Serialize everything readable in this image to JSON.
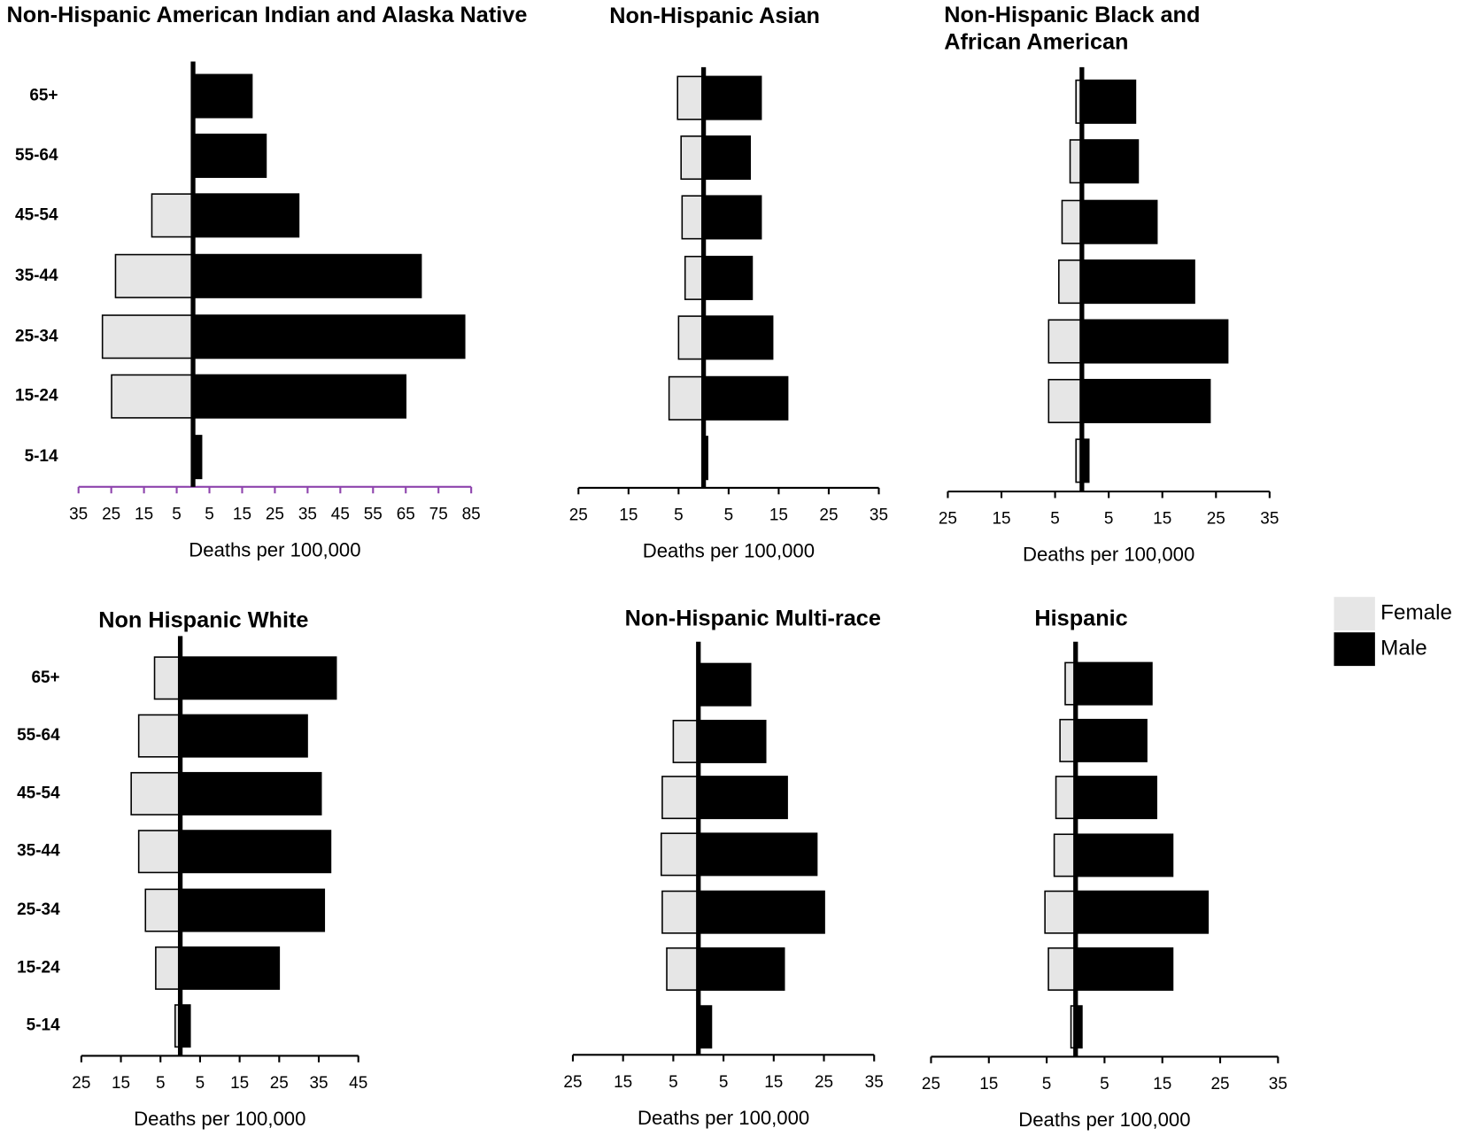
{
  "legend": {
    "series": [
      {
        "name": "Female",
        "color": "#e6e6e6"
      },
      {
        "name": "Male",
        "color": "#000000"
      }
    ]
  },
  "chart_data": [
    {
      "type": "pyramid",
      "title": "Non-Hispanic American Indian and Alaska Native",
      "xlabel": "Deaths per 100,000",
      "axis_color": "#8e44ad",
      "categories": [
        "65+",
        "55-64",
        "45-54",
        "35-44",
        "25-34",
        "15-24",
        "5-14"
      ],
      "series": [
        {
          "values": [
            null,
            null,
            12.6,
            23.7,
            27.7,
            24.9,
            null
          ]
        },
        {
          "values": [
            18,
            22.3,
            32.3,
            69.7,
            83,
            65,
            2.6
          ]
        }
      ],
      "xlim": [
        -35,
        85
      ],
      "xticks": [
        {
          "value": -35,
          "label": "35"
        },
        {
          "value": -25,
          "label": "25"
        },
        {
          "value": -15,
          "label": "15"
        },
        {
          "value": -5,
          "label": "5"
        },
        5,
        15,
        25,
        35,
        45,
        55,
        65,
        75,
        85
      ]
    },
    {
      "type": "pyramid",
      "title": "Non-Hispanic Asian",
      "xlabel": "Deaths per 100,000",
      "axis_color": "#000000",
      "series": [
        {
          "values": [
            5.2,
            4.5,
            4.3,
            3.7,
            5,
            6.9,
            null
          ]
        },
        {
          "values": [
            11.5,
            9.3,
            11.5,
            9.7,
            13.8,
            16.8,
            0.8
          ]
        }
      ],
      "xlim": [
        -25,
        35
      ],
      "xticks": [
        {
          "value": -25,
          "label": "25"
        },
        {
          "value": -15,
          "label": "15"
        },
        {
          "value": -5,
          "label": "5"
        },
        5,
        15,
        25,
        35
      ]
    },
    {
      "type": "pyramid",
      "title": "Non-Hispanic Black and African American",
      "xlabel": "Deaths per 100,000",
      "axis_color": "#000000",
      "series": [
        {
          "values": [
            1.1,
            2.2,
            3.7,
            4.3,
            6.2,
            6.2,
            1.1
          ]
        },
        {
          "values": [
            10,
            10.5,
            14,
            21,
            27.2,
            23.9,
            1.3
          ]
        }
      ],
      "xlim": [
        -25,
        35
      ],
      "xticks": [
        {
          "value": -25,
          "label": "25"
        },
        {
          "value": -15,
          "label": "15"
        },
        {
          "value": -5,
          "label": "5"
        },
        5,
        15,
        25,
        35
      ]
    },
    {
      "type": "pyramid",
      "title": "Non Hispanic White",
      "xlabel": "Deaths per 100,000",
      "axis_color": "#000000",
      "categories": [
        "65+",
        "55-64",
        "45-54",
        "35-44",
        "25-34",
        "15-24",
        "5-14"
      ],
      "series": [
        {
          "values": [
            6.5,
            10.5,
            12.4,
            10.5,
            8.8,
            6.2,
            1.3
          ]
        },
        {
          "values": [
            39.4,
            32.1,
            35.6,
            38,
            36.4,
            25,
            2.5
          ]
        }
      ],
      "xlim": [
        -25,
        45
      ],
      "xticks": [
        {
          "value": -25,
          "label": "25"
        },
        {
          "value": -15,
          "label": "15"
        },
        {
          "value": -5,
          "label": "5"
        },
        5,
        15,
        25,
        35,
        45
      ]
    },
    {
      "type": "pyramid",
      "title": "Non-Hispanic Multi-race",
      "xlabel": "Deaths per 100,000",
      "axis_color": "#000000",
      "series": [
        {
          "values": [
            null,
            5,
            7.2,
            7.4,
            7.2,
            6.3,
            null
          ]
        },
        {
          "values": [
            10.4,
            13.4,
            17.7,
            23.6,
            25.1,
            17.1,
            2.6
          ]
        }
      ],
      "xlim": [
        -25,
        35
      ],
      "xticks": [
        {
          "value": -25,
          "label": "25"
        },
        {
          "value": -15,
          "label": "15"
        },
        {
          "value": -5,
          "label": "5"
        },
        5,
        15,
        25,
        35
      ]
    },
    {
      "type": "pyramid",
      "title": "Hispanic",
      "xlabel": "Deaths per 100,000",
      "axis_color": "#000000",
      "series": [
        {
          "values": [
            1.8,
            2.7,
            3.4,
            3.7,
            5.3,
            4.7,
            0.8
          ]
        },
        {
          "values": [
            13.2,
            12.3,
            14,
            16.8,
            22.9,
            16.8,
            1.1
          ]
        }
      ],
      "xlim": [
        -25,
        35
      ],
      "xticks": [
        {
          "value": -25,
          "label": "25"
        },
        {
          "value": -15,
          "label": "15"
        },
        {
          "value": -5,
          "label": "5"
        },
        5,
        15,
        25,
        35
      ]
    }
  ]
}
